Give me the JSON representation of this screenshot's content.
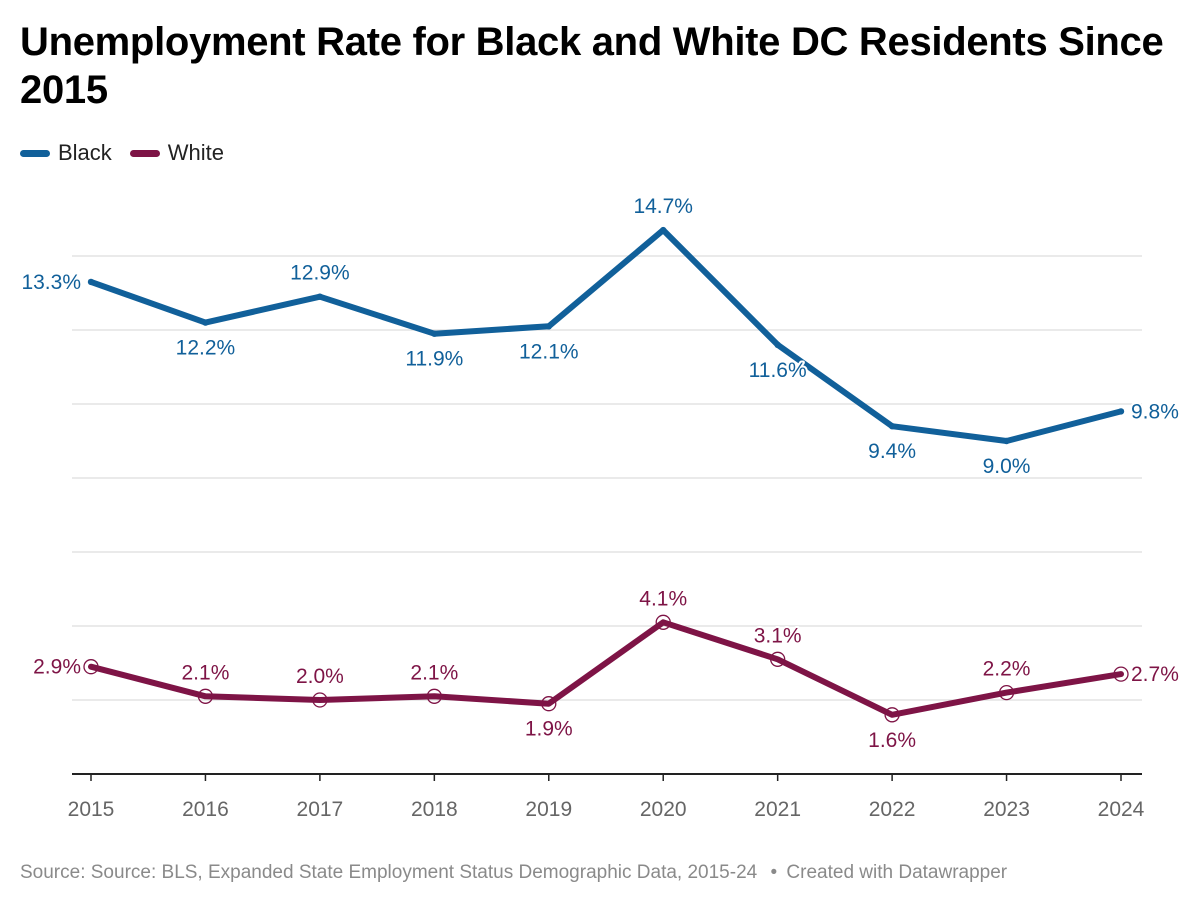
{
  "title": "Unemployment Rate for Black and White DC Residents Since 2015",
  "footer": {
    "source": "Source: Source: BLS, Expanded State Employment Status Demographic Data, 2015-24",
    "credit": "Created with Datawrapper"
  },
  "colors": {
    "black_series": "#11609A",
    "white_series": "#7E1446",
    "grid": "#dddddd",
    "axis": "#222222",
    "tick_label": "#666666"
  },
  "chart_data": {
    "type": "line",
    "title": "Unemployment Rate for Black and White DC Residents Since 2015",
    "xlabel": "",
    "ylabel": "",
    "x": [
      "2015",
      "2016",
      "2017",
      "2018",
      "2019",
      "2020",
      "2021",
      "2022",
      "2023",
      "2024"
    ],
    "ylim": [
      0,
      16
    ],
    "grid": true,
    "legend_position": "top-left",
    "series": [
      {
        "name": "Black",
        "color": "#11609A",
        "values": [
          13.3,
          12.2,
          12.9,
          11.9,
          12.1,
          14.7,
          11.6,
          9.4,
          9.0,
          9.8
        ],
        "labels": [
          "13.3%",
          "12.2%",
          "12.9%",
          "11.9%",
          "12.1%",
          "14.7%",
          "11.6%",
          "9.4%",
          "9.0%",
          "9.8%"
        ]
      },
      {
        "name": "White",
        "color": "#7E1446",
        "values": [
          2.9,
          2.1,
          2.0,
          2.1,
          1.9,
          4.1,
          3.1,
          1.6,
          2.2,
          2.7
        ],
        "labels": [
          "2.9%",
          "2.1%",
          "2.0%",
          "2.1%",
          "1.9%",
          "4.1%",
          "3.1%",
          "1.6%",
          "2.2%",
          "2.7%"
        ]
      }
    ]
  }
}
